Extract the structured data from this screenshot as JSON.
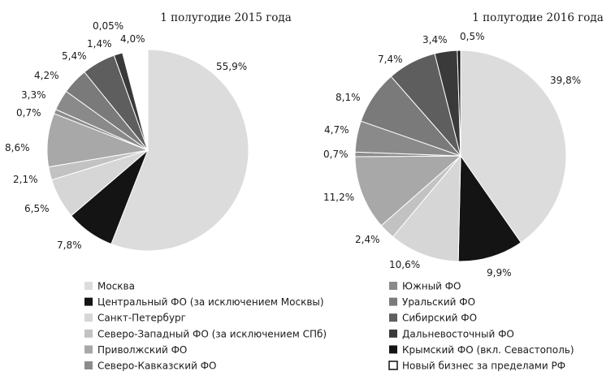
{
  "colors": {
    "moscow": "#dcdcdc",
    "central": "#141414",
    "spb": "#d6d6d6",
    "northwest": "#c2c2c2",
    "volga": "#a8a8a8",
    "north_caucasus": "#8c8c8c",
    "south": "#8a8a8a",
    "ural": "#7a7a7a",
    "siberia": "#5e5e5e",
    "far_east": "#3a3a3a",
    "crimea": "#141414",
    "outside_rf": "#ffffff"
  },
  "legend": [
    {
      "key": "moscow",
      "label": "Москва"
    },
    {
      "key": "central",
      "label": "Центральный ФО (за исключением Москвы)"
    },
    {
      "key": "spb",
      "label": "Санкт-Петербург"
    },
    {
      "key": "northwest",
      "label": "Северо-Западный ФО (за исключением СПб)"
    },
    {
      "key": "volga",
      "label": "Приволжский ФО"
    },
    {
      "key": "north_caucasus",
      "label": "Северо-Кавказский ФО"
    },
    {
      "key": "south",
      "label": "Южный ФО"
    },
    {
      "key": "ural",
      "label": "Уральский ФО"
    },
    {
      "key": "siberia",
      "label": "Сибирский ФО"
    },
    {
      "key": "far_east",
      "label": "Дальневосточный ФО"
    },
    {
      "key": "crimea",
      "label": "Крымский ФО (вкл. Севастополь)"
    },
    {
      "key": "outside_rf",
      "label": "Новый бизнес за пределами РФ"
    }
  ],
  "chart_data": [
    {
      "type": "pie",
      "title": "1 полугодие 2015 года",
      "slices": [
        {
          "key": "moscow",
          "value": 55.9,
          "label": "55,9%"
        },
        {
          "key": "central",
          "value": 7.8,
          "label": "7,8%"
        },
        {
          "key": "spb",
          "value": 6.5,
          "label": "6,5%"
        },
        {
          "key": "northwest",
          "value": 2.1,
          "label": "2,1%"
        },
        {
          "key": "volga",
          "value": 8.6,
          "label": "8,6%"
        },
        {
          "key": "north_caucasus",
          "value": 0.7,
          "label": "0,7%"
        },
        {
          "key": "south",
          "value": 3.3,
          "label": "3,3%"
        },
        {
          "key": "ural",
          "value": 4.2,
          "label": "4,2%"
        },
        {
          "key": "siberia",
          "value": 5.4,
          "label": "5,4%"
        },
        {
          "key": "far_east",
          "value": 1.4,
          "label": "1,4%"
        },
        {
          "key": "crimea",
          "value": 0.05,
          "label": "0,05%"
        },
        {
          "key": "outside_rf",
          "value": 4.0,
          "label": "4,0%"
        }
      ]
    },
    {
      "type": "pie",
      "title": "1 полугодие 2016 года",
      "slices": [
        {
          "key": "moscow",
          "value": 39.8,
          "label": "39,8%"
        },
        {
          "key": "central",
          "value": 9.9,
          "label": "9,9%"
        },
        {
          "key": "spb",
          "value": 10.6,
          "label": "10,6%"
        },
        {
          "key": "northwest",
          "value": 2.4,
          "label": "2,4%"
        },
        {
          "key": "volga",
          "value": 11.2,
          "label": "11,2%"
        },
        {
          "key": "north_caucasus",
          "value": 0.7,
          "label": "0,7%"
        },
        {
          "key": "south",
          "value": 4.7,
          "label": "4,7%"
        },
        {
          "key": "ural",
          "value": 8.1,
          "label": "8,1%"
        },
        {
          "key": "siberia",
          "value": 7.4,
          "label": "7,4%"
        },
        {
          "key": "far_east",
          "value": 3.4,
          "label": "3,4%"
        },
        {
          "key": "crimea",
          "value": 0.5,
          "label": "0,5%"
        }
      ]
    }
  ]
}
